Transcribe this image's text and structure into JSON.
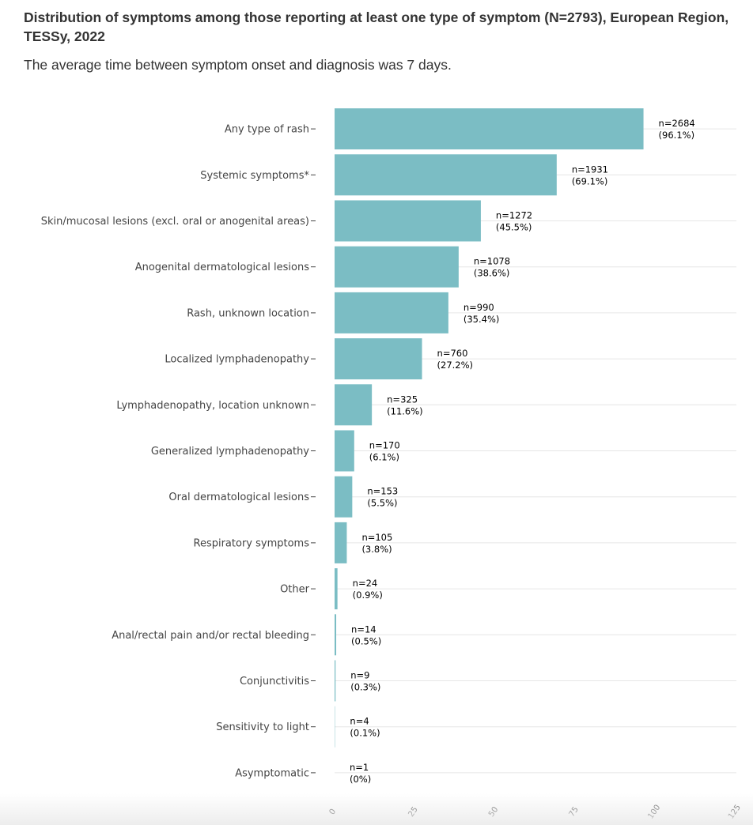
{
  "header": {
    "title": "Distribution of symptoms among those reporting at least one type of symptom (N=2793), European Region, TESSy, 2022",
    "subtitle": "The average time between symptom onset and diagnosis was 7 days."
  },
  "chart_data": {
    "type": "bar",
    "orientation": "horizontal",
    "categories": [
      "Any type of rash",
      "Systemic symptoms*",
      "Skin/mucosal lesions (excl. oral or anogenital areas)",
      "Anogenital dermatological lesions",
      "Rash, unknown location",
      "Localized lymphadenopathy",
      "Lymphadenopathy, location unknown",
      "Generalized lymphadenopathy",
      "Oral dermatological lesions",
      "Respiratory symptoms",
      "Other",
      "Anal/rectal pain and/or rectal bleeding",
      "Conjunctivitis",
      "Sensitivity to light",
      "Asymptomatic"
    ],
    "values": [
      96.1,
      69.1,
      45.5,
      38.6,
      35.4,
      27.2,
      11.6,
      6.1,
      5.5,
      3.8,
      0.9,
      0.5,
      0.3,
      0.1,
      0
    ],
    "data_labels_n": [
      "n=2684",
      "n=1931",
      "n=1272",
      "n=1078",
      "n=990",
      "n=760",
      "n=325",
      "n=170",
      "n=153",
      "n=105",
      "n=24",
      "n=14",
      "n=9",
      "n=4",
      "n=1"
    ],
    "data_labels_pct": [
      "(96.1%)",
      "(69.1%)",
      "(45.5%)",
      "(38.6%)",
      "(35.4%)",
      "(27.2%)",
      "(11.6%)",
      "(6.1%)",
      "(5.5%)",
      "(3.8%)",
      "(0.9%)",
      "(0.5%)",
      "(0.3%)",
      "(0.1%)",
      "(0%)"
    ],
    "x_ticks": [
      0,
      25,
      50,
      75,
      100,
      125
    ],
    "xlim": [
      0,
      125
    ],
    "grid": true,
    "xlabel": "",
    "ylabel": "",
    "bar_color": "#7bbdc4"
  }
}
